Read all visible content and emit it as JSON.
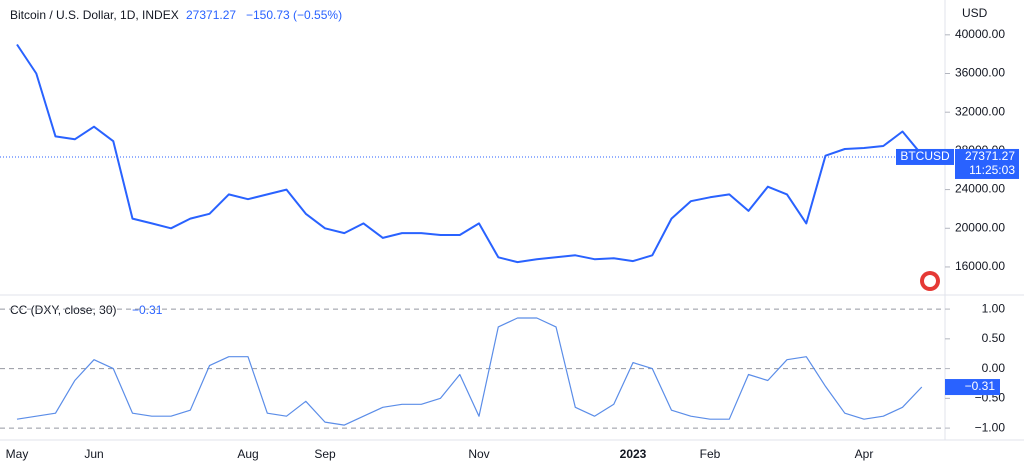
{
  "chart_data": [
    {
      "type": "line",
      "title": "Bitcoin / U.S. Dollar, 1D, INDEX",
      "currency": "USD",
      "symbol": "BTCUSD",
      "last_value": 27371.27,
      "change_label": "−150.73 (−0.55%)",
      "time_label": "11:25:03",
      "color": "#2962ff",
      "values": [
        39000,
        36000,
        29500,
        29200,
        30500,
        29000,
        21000,
        20500,
        20000,
        21000,
        21500,
        23500,
        23000,
        23500,
        24000,
        21500,
        20000,
        19500,
        20500,
        19000,
        19500,
        19500,
        19300,
        19300,
        20500,
        17000,
        16500,
        16800,
        17000,
        17200,
        16800,
        16900,
        16600,
        17200,
        21000,
        22800,
        23200,
        23500,
        21800,
        24300,
        23500,
        20500,
        27500,
        28200,
        28300,
        28500,
        30000,
        27600
      ],
      "ylim": [
        13100,
        43600
      ],
      "yticks": [
        {
          "value": 16000,
          "label": "16000.00"
        },
        {
          "value": 20000,
          "label": "20000.00"
        },
        {
          "value": 24000,
          "label": "24000.00"
        },
        {
          "value": 28000,
          "label": "28000.00"
        },
        {
          "value": 32000,
          "label": "32000.00"
        },
        {
          "value": 36000,
          "label": "36000.00"
        },
        {
          "value": 40000,
          "label": "40000.00"
        }
      ]
    },
    {
      "type": "line",
      "title": "CC (DXY, close, 30)",
      "last_value": -0.31,
      "last_value_label": "−0.31",
      "color": "#5b8de8",
      "categories": [
        "May",
        null,
        null,
        null,
        "Jun",
        null,
        null,
        null,
        null,
        null,
        null,
        null,
        "Aug",
        null,
        null,
        null,
        "Sep",
        null,
        null,
        null,
        null,
        null,
        null,
        null,
        "Nov",
        null,
        null,
        null,
        null,
        null,
        null,
        null,
        "2023",
        null,
        null,
        null,
        "Feb",
        null,
        null,
        null,
        null,
        null,
        null,
        null,
        "Apr",
        null,
        null,
        null
      ],
      "values": [
        -0.85,
        -0.8,
        -0.75,
        -0.2,
        0.15,
        0.0,
        -0.75,
        -0.8,
        -0.8,
        -0.7,
        0.05,
        0.2,
        0.2,
        -0.75,
        -0.8,
        -0.55,
        -0.9,
        -0.95,
        -0.8,
        -0.65,
        -0.6,
        -0.6,
        -0.5,
        -0.1,
        -0.8,
        0.7,
        0.85,
        0.85,
        0.7,
        -0.65,
        -0.8,
        -0.6,
        0.1,
        0.0,
        -0.7,
        -0.8,
        -0.85,
        -0.85,
        -0.1,
        -0.2,
        0.15,
        0.2,
        -0.3,
        -0.75,
        -0.85,
        -0.8,
        -0.65,
        -0.31
      ],
      "ylim": [
        -1.2,
        1.22
      ],
      "yticks": [
        {
          "value": 1,
          "label": "1.00"
        },
        {
          "value": 0.5,
          "label": "0.50"
        },
        {
          "value": 0,
          "label": "0.00"
        },
        {
          "value": -0.5,
          "label": "−0.50"
        },
        {
          "value": -1,
          "label": "−1.00"
        }
      ],
      "grid_ticks": [
        1,
        0,
        -1
      ]
    }
  ]
}
